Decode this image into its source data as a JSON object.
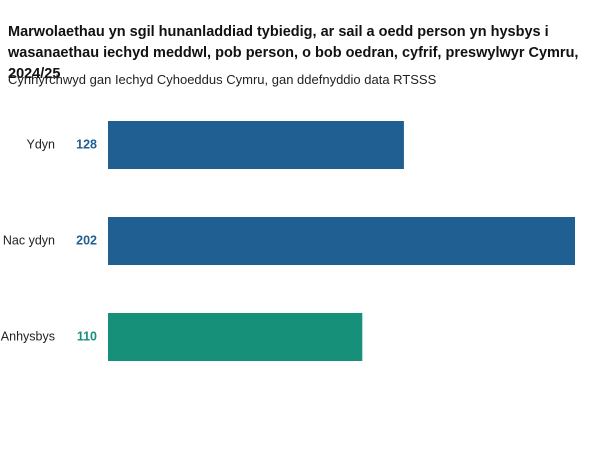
{
  "chart_data": {
    "type": "hbar",
    "title": "Marwolaethau yn sgil hunanladdiad tybiedig, ar sail a oedd person yn hysbys i wasanaethau iechyd meddwl, pob person, o bob oedran, cyfrif, preswylwyr Cymru, 2024/25",
    "subtitle": "Cynhyrchwyd gan Iechyd Cyhoeddus Cymru, gan ddefnyddio data RTSSS",
    "categories": [
      "Ydyn",
      "Nac ydyn",
      "Anhysbys"
    ],
    "values": [
      128,
      202,
      110
    ],
    "colors": [
      "#1f5f91",
      "#1f5f91",
      "#17907a"
    ]
  }
}
